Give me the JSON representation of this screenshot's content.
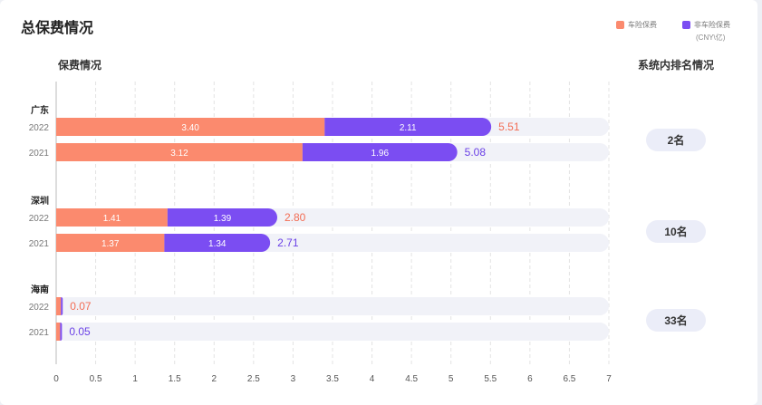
{
  "title": "总保费情况",
  "left_header": "保费情况",
  "right_header": "系统内排名情况",
  "legend": {
    "car": "车险保费",
    "noncar": "非车险保费",
    "unit": "(CNY\\亿)"
  },
  "colors": {
    "car": "#fb8a6e",
    "noncar": "#7b4df2",
    "track": "#f1f2f8",
    "grid": "#e3e3e3",
    "car_total": "#f26d54",
    "noncar_total": "#6a40e6"
  },
  "ranks": [
    "2名",
    "10名",
    "33名"
  ],
  "chart_data": {
    "type": "bar",
    "orientation": "horizontal",
    "stacked": true,
    "xlim": [
      0,
      7
    ],
    "xticks": [
      "0",
      "0.5",
      "1",
      "1.5",
      "2",
      "2.5",
      "3",
      "3.5",
      "4",
      "4.5",
      "5",
      "5.5",
      "6",
      "6.5",
      "7"
    ],
    "grid": true,
    "legend_position": "top-right",
    "series": [
      {
        "name": "车险保费",
        "key": "car"
      },
      {
        "name": "非车险保费",
        "key": "noncar"
      }
    ],
    "groups": [
      {
        "region": "广东",
        "rows": [
          {
            "year": "2022",
            "car": 3.4,
            "noncar": 2.11,
            "total": 5.51,
            "car_label": "3.40",
            "noncar_label": "2.11",
            "total_label": "5.51",
            "total_color": "car"
          },
          {
            "year": "2021",
            "car": 3.12,
            "noncar": 1.96,
            "total": 5.08,
            "car_label": "3.12",
            "noncar_label": "1.96",
            "total_label": "5.08",
            "total_color": "noncar"
          }
        ]
      },
      {
        "region": "深圳",
        "rows": [
          {
            "year": "2022",
            "car": 1.41,
            "noncar": 1.39,
            "total": 2.8,
            "car_label": "1.41",
            "noncar_label": "1.39",
            "total_label": "2.80",
            "total_color": "car"
          },
          {
            "year": "2021",
            "car": 1.37,
            "noncar": 1.34,
            "total": 2.71,
            "car_label": "1.37",
            "noncar_label": "1.34",
            "total_label": "2.71",
            "total_color": "noncar"
          }
        ]
      },
      {
        "region": "海南",
        "rows": [
          {
            "year": "2022",
            "car": 0.06,
            "noncar": 0.01,
            "total": 0.07,
            "car_label": "",
            "noncar_label": "",
            "total_label": "0.07",
            "total_color": "car"
          },
          {
            "year": "2021",
            "car": 0.05,
            "noncar": 0.01,
            "total": 0.05,
            "car_label": "",
            "noncar_label": "",
            "total_label": "0.05",
            "total_color": "noncar"
          }
        ]
      }
    ]
  }
}
